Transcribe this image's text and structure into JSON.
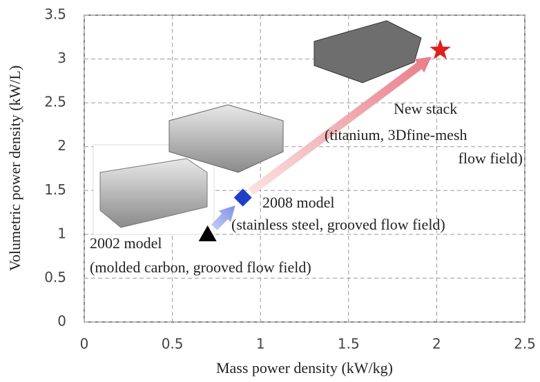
{
  "chart_data": {
    "type": "scatter",
    "x_label": "Mass power density (kW/kg)",
    "y_label": "Volumetric  power density (kW/L)",
    "xlim": [
      0,
      2.5
    ],
    "ylim": [
      0,
      3.5
    ],
    "xticks": [
      0,
      0.5,
      1,
      1.5,
      2,
      2.5
    ],
    "yticks": [
      0,
      0.5,
      1,
      1.5,
      2,
      2.5,
      3,
      3.5
    ],
    "grid": true,
    "series": [
      {
        "name": "2002 model",
        "description": [
          "(molded carbon, grooved flow field)"
        ],
        "marker": "triangle",
        "color": "#000000",
        "x": [
          0.7
        ],
        "values": [
          1.0
        ]
      },
      {
        "name": "2008 model",
        "description": [
          "(stainless steel, grooved flow field)"
        ],
        "marker": "diamond",
        "color": "#1f3fc8",
        "x": [
          0.9
        ],
        "values": [
          1.42
        ]
      },
      {
        "name": "New stack",
        "description": [
          "(titanium,  3Dfine-mesh",
          "flow field)"
        ],
        "marker": "star",
        "color": "#e02020",
        "x": [
          2.02
        ],
        "values": [
          3.1
        ]
      }
    ]
  }
}
